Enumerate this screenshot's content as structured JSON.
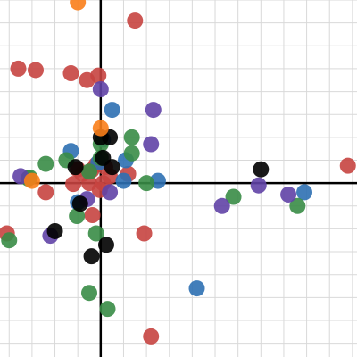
{
  "chart_data": {
    "type": "scatter",
    "title": "",
    "xlabel": "",
    "ylabel": "",
    "xlim": [
      -2.2,
      5.6
    ],
    "ylim": [
      -3.8,
      4.0
    ],
    "grid": true,
    "legend": "none",
    "series": [
      {
        "color": "#c74440",
        "points": [
          [
            0.75,
            3.55
          ],
          [
            -1.8,
            2.5
          ],
          [
            -1.42,
            2.47
          ],
          [
            -0.65,
            2.4
          ],
          [
            -0.3,
            2.25
          ],
          [
            -0.05,
            2.35
          ],
          [
            -0.4,
            0.2
          ],
          [
            -0.2,
            0.28
          ],
          [
            -0.5,
            0.3
          ],
          [
            -0.1,
            0.4
          ],
          [
            0.1,
            0.35
          ],
          [
            -0.25,
            0.0
          ],
          [
            0.05,
            0.0
          ],
          [
            -0.02,
            -0.15
          ],
          [
            0.2,
            0.15
          ],
          [
            0.6,
            0.2
          ],
          [
            -0.6,
            -0.02
          ],
          [
            -1.2,
            -0.2
          ],
          [
            -0.18,
            -0.7
          ],
          [
            -2.05,
            -1.1
          ],
          [
            0.95,
            -1.1
          ],
          [
            1.1,
            -3.35
          ],
          [
            5.4,
            0.38
          ]
        ]
      },
      {
        "color": "#2d70b3",
        "points": [
          [
            0.25,
            1.6
          ],
          [
            -0.65,
            0.7
          ],
          [
            0.05,
            0.95
          ],
          [
            0.5,
            0.05
          ],
          [
            0.55,
            0.5
          ],
          [
            1.25,
            0.05
          ],
          [
            -0.05,
            0.45
          ],
          [
            -0.5,
            -0.42
          ],
          [
            2.1,
            -2.3
          ],
          [
            4.45,
            -0.2
          ]
        ]
      },
      {
        "color": "#388c46",
        "points": [
          [
            0.68,
            1.0
          ],
          [
            0.0,
            0.85
          ],
          [
            -1.2,
            0.42
          ],
          [
            -0.75,
            0.5
          ],
          [
            -1.55,
            0.12
          ],
          [
            -1.58,
            0.1
          ],
          [
            0.68,
            0.65
          ],
          [
            0.0,
            0.55
          ],
          [
            -0.25,
            0.25
          ],
          [
            1.0,
            0.0
          ],
          [
            -0.52,
            -0.72
          ],
          [
            -0.1,
            -1.1
          ],
          [
            -2.0,
            -1.25
          ],
          [
            -0.25,
            -2.4
          ],
          [
            0.15,
            -2.75
          ],
          [
            2.9,
            -0.3
          ],
          [
            4.3,
            -0.5
          ]
        ]
      },
      {
        "color": "#6042a6",
        "points": [
          [
            0.0,
            2.05
          ],
          [
            1.15,
            1.6
          ],
          [
            1.1,
            0.85
          ],
          [
            -1.75,
            0.15
          ],
          [
            -1.1,
            -1.15
          ],
          [
            0.2,
            -0.2
          ],
          [
            -0.3,
            -0.35
          ],
          [
            3.45,
            -0.05
          ],
          [
            4.1,
            -0.25
          ],
          [
            2.65,
            -0.5
          ]
        ]
      },
      {
        "color": "#000000",
        "points": [
          [
            0.2,
            1.0
          ],
          [
            0.0,
            1.0
          ],
          [
            0.05,
            0.55
          ],
          [
            -0.55,
            0.35
          ],
          [
            0.25,
            0.35
          ],
          [
            -0.45,
            -0.45
          ],
          [
            -1.0,
            -1.05
          ],
          [
            0.12,
            -1.35
          ],
          [
            -0.2,
            -1.6
          ],
          [
            3.5,
            0.3
          ]
        ]
      },
      {
        "color": "#fa7e19",
        "points": [
          [
            -0.5,
            3.95
          ],
          [
            0.0,
            1.2
          ],
          [
            -1.5,
            0.05
          ]
        ]
      }
    ]
  }
}
